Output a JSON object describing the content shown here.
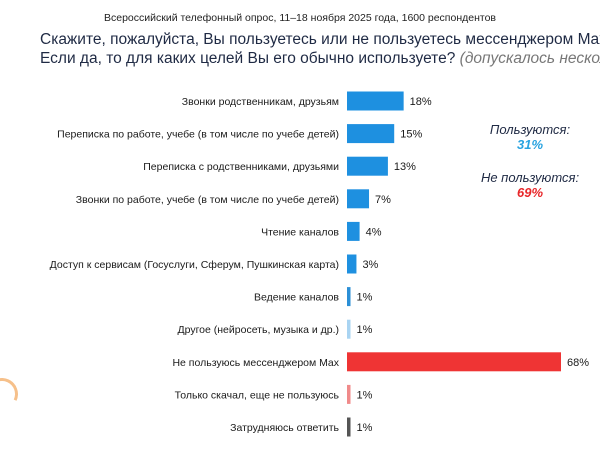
{
  "header": {
    "subtitle": "Всероссийский телефонный опрос, 11–18 ноября 2025 года, 1600 респондентов",
    "question_line1": "Скажите, пожалуйста, Вы пользуетесь или не пользуетесь мессенджером Max (Max)?",
    "question_line2_main": "Если да, то для каких целей Вы его обычно используете?",
    "question_line2_note": "(допускалось несколько ответов)"
  },
  "summary": {
    "use_label": "Пользуются:",
    "use_value": "31%",
    "use_color": "#29a3e0",
    "not_use_label": "Не пользуются:",
    "not_use_value": "69%",
    "not_use_color": "#e8282b"
  },
  "chart_data": {
    "type": "bar",
    "orientation": "horizontal",
    "categories": [
      "Звонки родственникам, друзьям",
      "Переписка по работе, учебе (в том числе по учебе детей)",
      "Переписка с родственниками, друзьями",
      "Звонки по работе, учебе (в том числе по учебе детей)",
      "Чтение каналов",
      "Доступ к сервисам (Госуслуги, Сферум, Пушкинская карта)",
      "Ведение каналов",
      "Другое (нейросеть, музыка и др.)",
      "Не пользуюсь мессенджером Max",
      "Только скачал, еще не пользуюсь",
      "Затрудняюсь ответить"
    ],
    "values": [
      18,
      15,
      13,
      7,
      4,
      3,
      1,
      1,
      68,
      1,
      1
    ],
    "value_labels": [
      "18%",
      "15%",
      "13%",
      "7%",
      "4%",
      "3%",
      "1%",
      "1%",
      "68%",
      "1%",
      "1%"
    ],
    "colors": [
      "#1e90e0",
      "#1e90e0",
      "#1e90e0",
      "#1e90e0",
      "#1e90e0",
      "#1e90e0",
      "#2b8fd6",
      "#a9d4f2",
      "#ef3434",
      "#f08a8a",
      "#555555"
    ],
    "xlim": [
      0,
      68
    ],
    "grid": false,
    "legend": "none"
  }
}
